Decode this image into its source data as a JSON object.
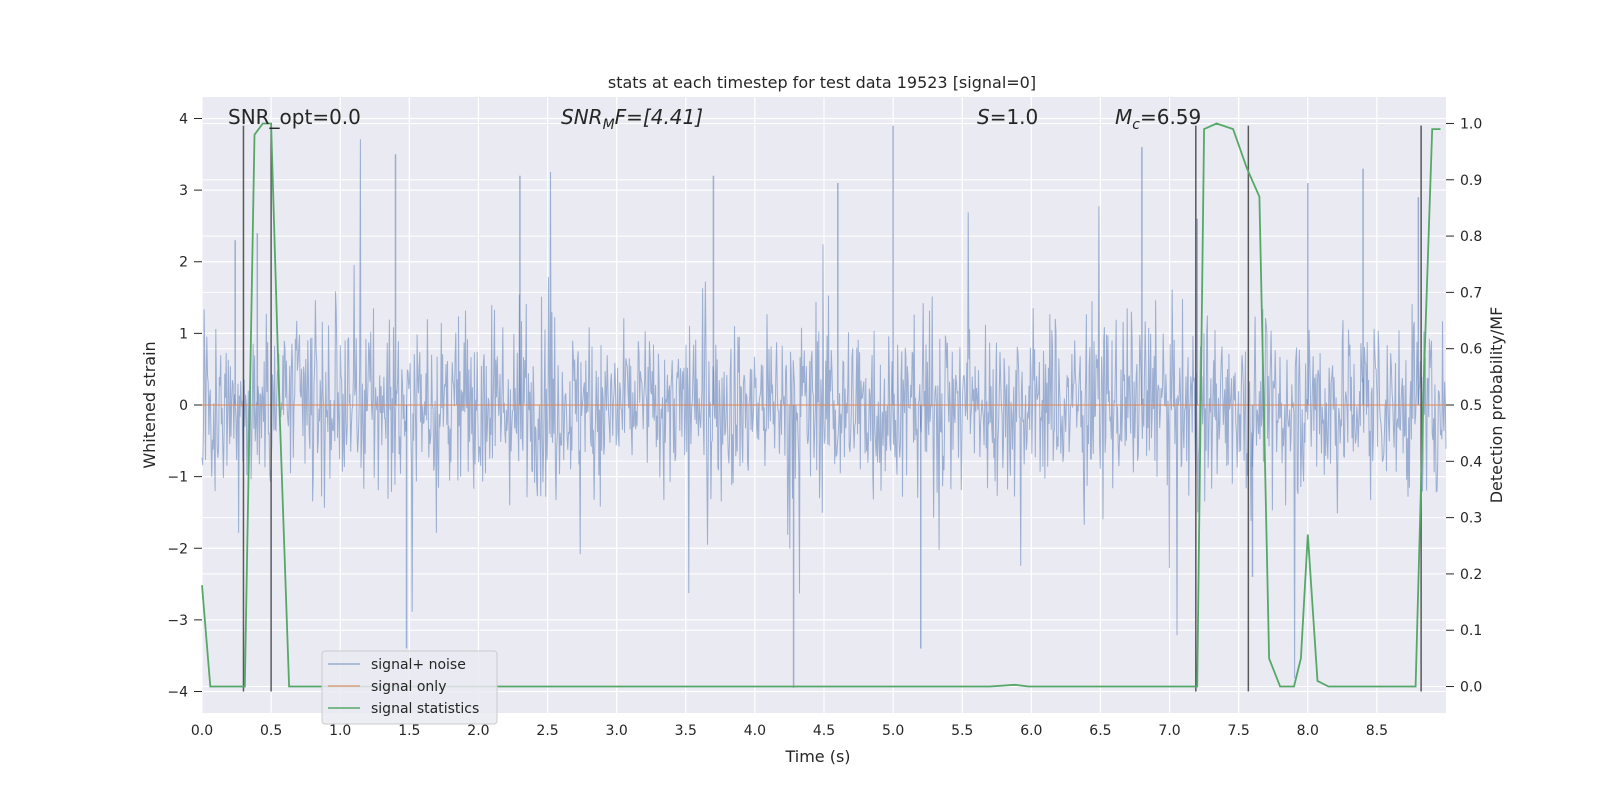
{
  "chart_data": {
    "type": "line",
    "title": "stats at each timestep for test data 19523 [signal=0]",
    "xlabel": "Time (s)",
    "ylabel": "Whitened strain",
    "y2label": "Detection probability/MF",
    "xlim": [
      0.0,
      9.0
    ],
    "ylim": [
      -4.3,
      4.3
    ],
    "y2lim": [
      -0.047,
      1.047
    ],
    "xticks": [
      "0.0",
      "0.5",
      "1.0",
      "1.5",
      "2.0",
      "2.5",
      "3.0",
      "3.5",
      "4.0",
      "4.5",
      "5.0",
      "5.5",
      "6.0",
      "6.5",
      "7.0",
      "7.5",
      "8.0",
      "8.5"
    ],
    "yticks": [
      "4",
      "3",
      "2",
      "1",
      "0",
      "−1",
      "−2",
      "−3",
      "−4"
    ],
    "y2ticks": [
      "1.0",
      "0.9",
      "0.8",
      "0.7",
      "0.6",
      "0.5",
      "0.4",
      "0.3",
      "0.2",
      "0.1",
      "0.0"
    ],
    "grid": true,
    "legend_position": "lower-left",
    "annotations": {
      "snr_opt": "SNR_opt=0.0",
      "snr_mf_main": "SNR",
      "snr_mf_sub": "M",
      "snr_mf_rest": "F=[4.41]",
      "s_main": "S",
      "s_rest": "=1.0",
      "mc_main": "M",
      "mc_sub": "c",
      "mc_rest": "=6.59"
    },
    "series": [
      {
        "name": "signal+ noise",
        "color": "#4c72b0",
        "description_of_data": "noise-like strain, roughly ±1.5 with spikes to ±4",
        "envelope_peaks": [
          [
            0.24,
            2.3
          ],
          [
            0.4,
            2.4
          ],
          [
            1.4,
            3.5
          ],
          [
            1.48,
            -3.4
          ],
          [
            2.3,
            3.2
          ],
          [
            3.7,
            3.2
          ],
          [
            4.28,
            -3.95
          ],
          [
            4.6,
            3.1
          ],
          [
            5.0,
            3.9
          ],
          [
            5.2,
            -3.4
          ],
          [
            6.8,
            3.6
          ],
          [
            7.2,
            2.6
          ],
          [
            7.6,
            -2.4
          ],
          [
            8.0,
            3.1
          ],
          [
            8.4,
            3.3
          ],
          [
            8.8,
            2.9
          ]
        ]
      },
      {
        "name": "signal only",
        "color": "#dd8452",
        "x": [
          0.0,
          9.0
        ],
        "y": [
          0.0,
          0.0
        ]
      },
      {
        "name": "signal statistics",
        "color": "#55a868",
        "axis": "right",
        "x": [
          0.0,
          0.06,
          0.12,
          0.2,
          0.3,
          0.31,
          0.38,
          0.44,
          0.5,
          0.56,
          0.63,
          0.7,
          1.0,
          2.0,
          3.0,
          4.0,
          5.0,
          5.7,
          5.88,
          5.98,
          6.5,
          7.0,
          7.2,
          7.25,
          7.34,
          7.46,
          7.56,
          7.65,
          7.72,
          7.8,
          7.9,
          7.95,
          8.0,
          8.07,
          8.15,
          8.3,
          8.5,
          8.7,
          8.78,
          8.84,
          8.9,
          8.96
        ],
        "y": [
          0.18,
          0.0,
          0.0,
          0.0,
          0.0,
          0.0,
          0.98,
          1.0,
          1.0,
          0.5,
          0.0,
          0.0,
          0.0,
          0.0,
          0.0,
          0.0,
          0.0,
          0.0,
          0.003,
          0.0,
          0.0,
          0.0,
          0.0,
          0.99,
          1.0,
          0.99,
          0.92,
          0.87,
          0.05,
          0.0,
          0.0,
          0.05,
          0.27,
          0.01,
          0.0,
          0.0,
          0.0,
          0.0,
          0.0,
          0.55,
          0.99,
          0.99
        ]
      }
    ],
    "vertical_markers": [
      0.3,
      0.5,
      7.19,
      7.57,
      8.82
    ]
  }
}
